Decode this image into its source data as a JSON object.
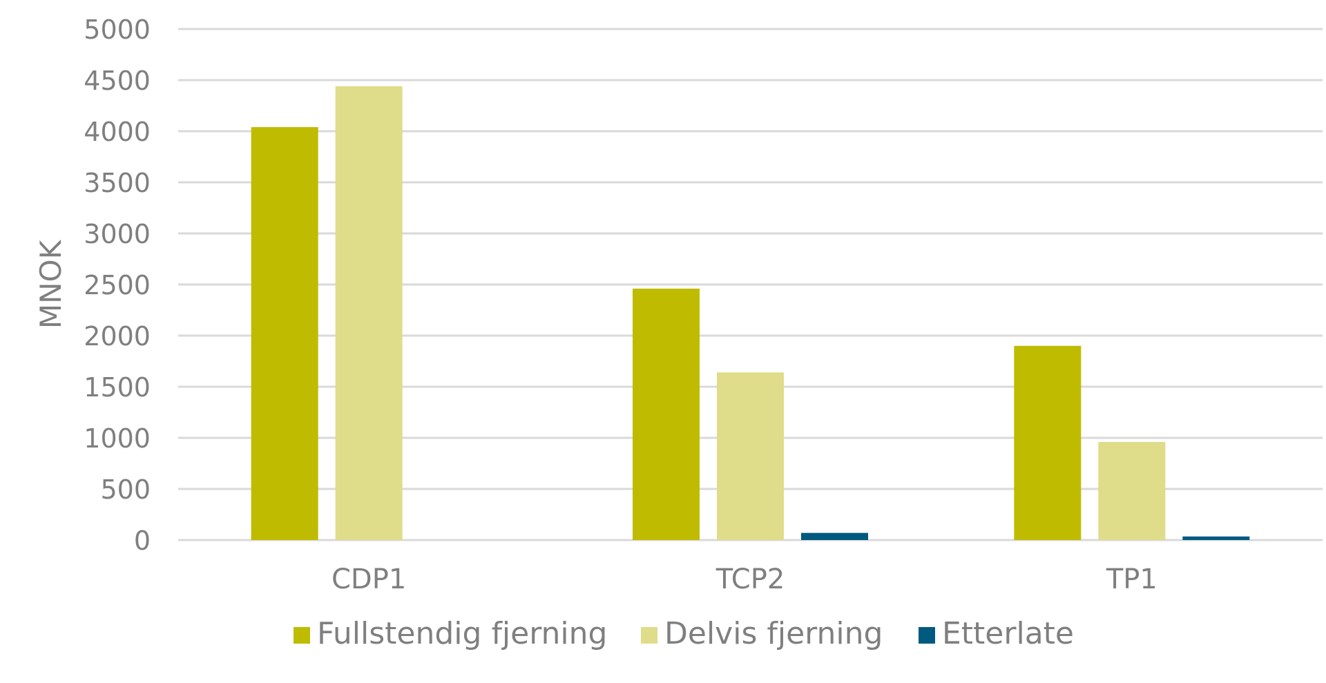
{
  "chart_data": {
    "type": "bar",
    "title": "",
    "xlabel": "",
    "ylabel": "MNOK",
    "ylim": [
      0,
      5000
    ],
    "yticks": [
      0,
      500,
      1000,
      1500,
      2000,
      2500,
      3000,
      3500,
      4000,
      4500,
      5000
    ],
    "categories": [
      "CDP1",
      "TCP2",
      "TP1"
    ],
    "series": [
      {
        "name": "Fullstendig fjerning",
        "color": "#bfbb00",
        "values": [
          4040,
          2460,
          1900
        ]
      },
      {
        "name": "Delvis fjerning",
        "color": "#dfdc8a",
        "values": [
          4440,
          1640,
          960
        ]
      },
      {
        "name": "Etterlate",
        "color": "#005a7f",
        "values": [
          0,
          70,
          35
        ]
      }
    ],
    "grid": true,
    "legend_position": "bottom"
  }
}
